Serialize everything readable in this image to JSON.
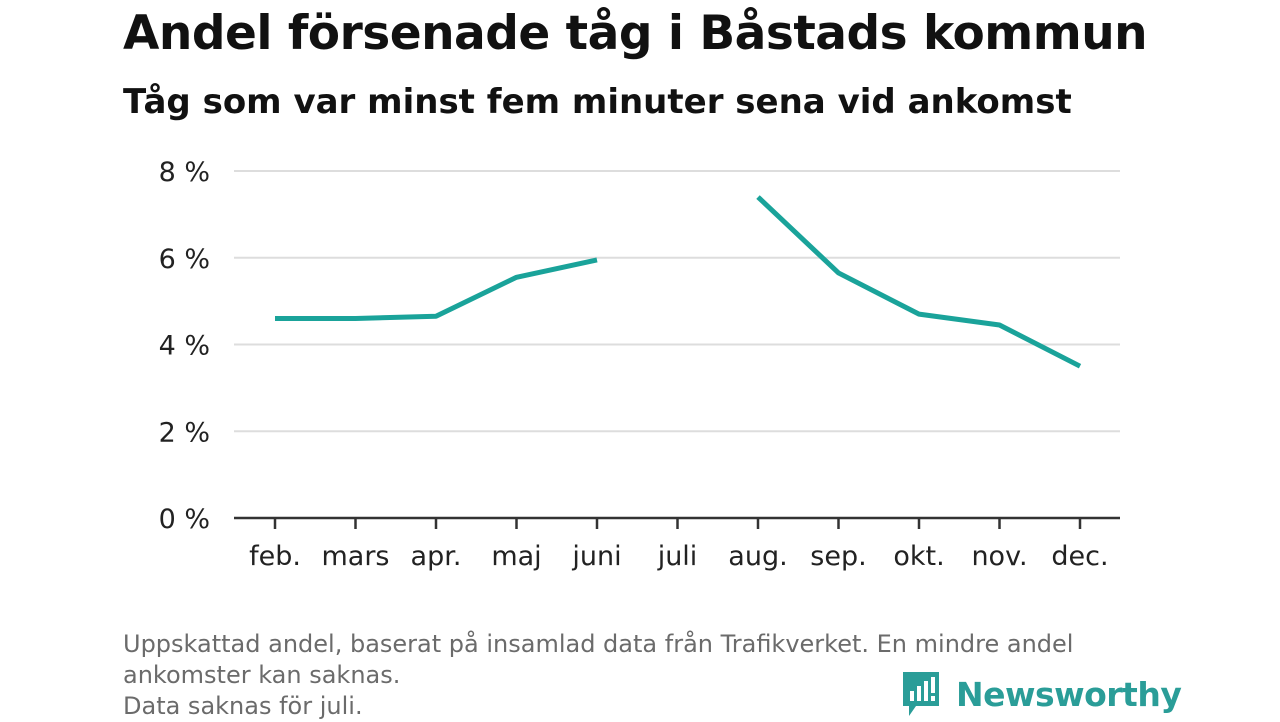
{
  "header": {
    "title": "Andel försenade tåg i Båstads kommun",
    "subtitle": "Tåg som var minst fem minuter sena vid ankomst"
  },
  "chart_data": {
    "type": "line",
    "title": "Andel försenade tåg i Båstads kommun",
    "subtitle": "Tåg som var minst fem minuter sena vid ankomst",
    "categories": [
      "feb.",
      "mars",
      "apr.",
      "maj",
      "juni",
      "juli",
      "aug.",
      "sep.",
      "okt.",
      "nov.",
      "dec."
    ],
    "series": [
      {
        "values": [
          4.6,
          4.6,
          4.65,
          5.55,
          5.95,
          null,
          7.4,
          5.65,
          4.7,
          4.45,
          3.5
        ],
        "color": "#1aa39a"
      }
    ],
    "ylim": [
      0,
      8
    ],
    "yticks": [
      0,
      2,
      4,
      6,
      8
    ],
    "ytick_labels": [
      "0 %",
      "2 %",
      "4 %",
      "6 %",
      "8 %"
    ],
    "xlabel": "",
    "ylabel": "",
    "grid": true,
    "gridline_color": "#dddddd",
    "axis_color": "#333333"
  },
  "footnote": {
    "line1": "Uppskattad andel, baserat på insamlad data från Trafikverket. En mindre andel",
    "line2": "ankomster kan saknas.",
    "line3": "Data saknas för juli."
  },
  "brand": {
    "name": "Newsworthy",
    "color": "#2a9d98",
    "icon": "newsworthy-logo-icon"
  }
}
